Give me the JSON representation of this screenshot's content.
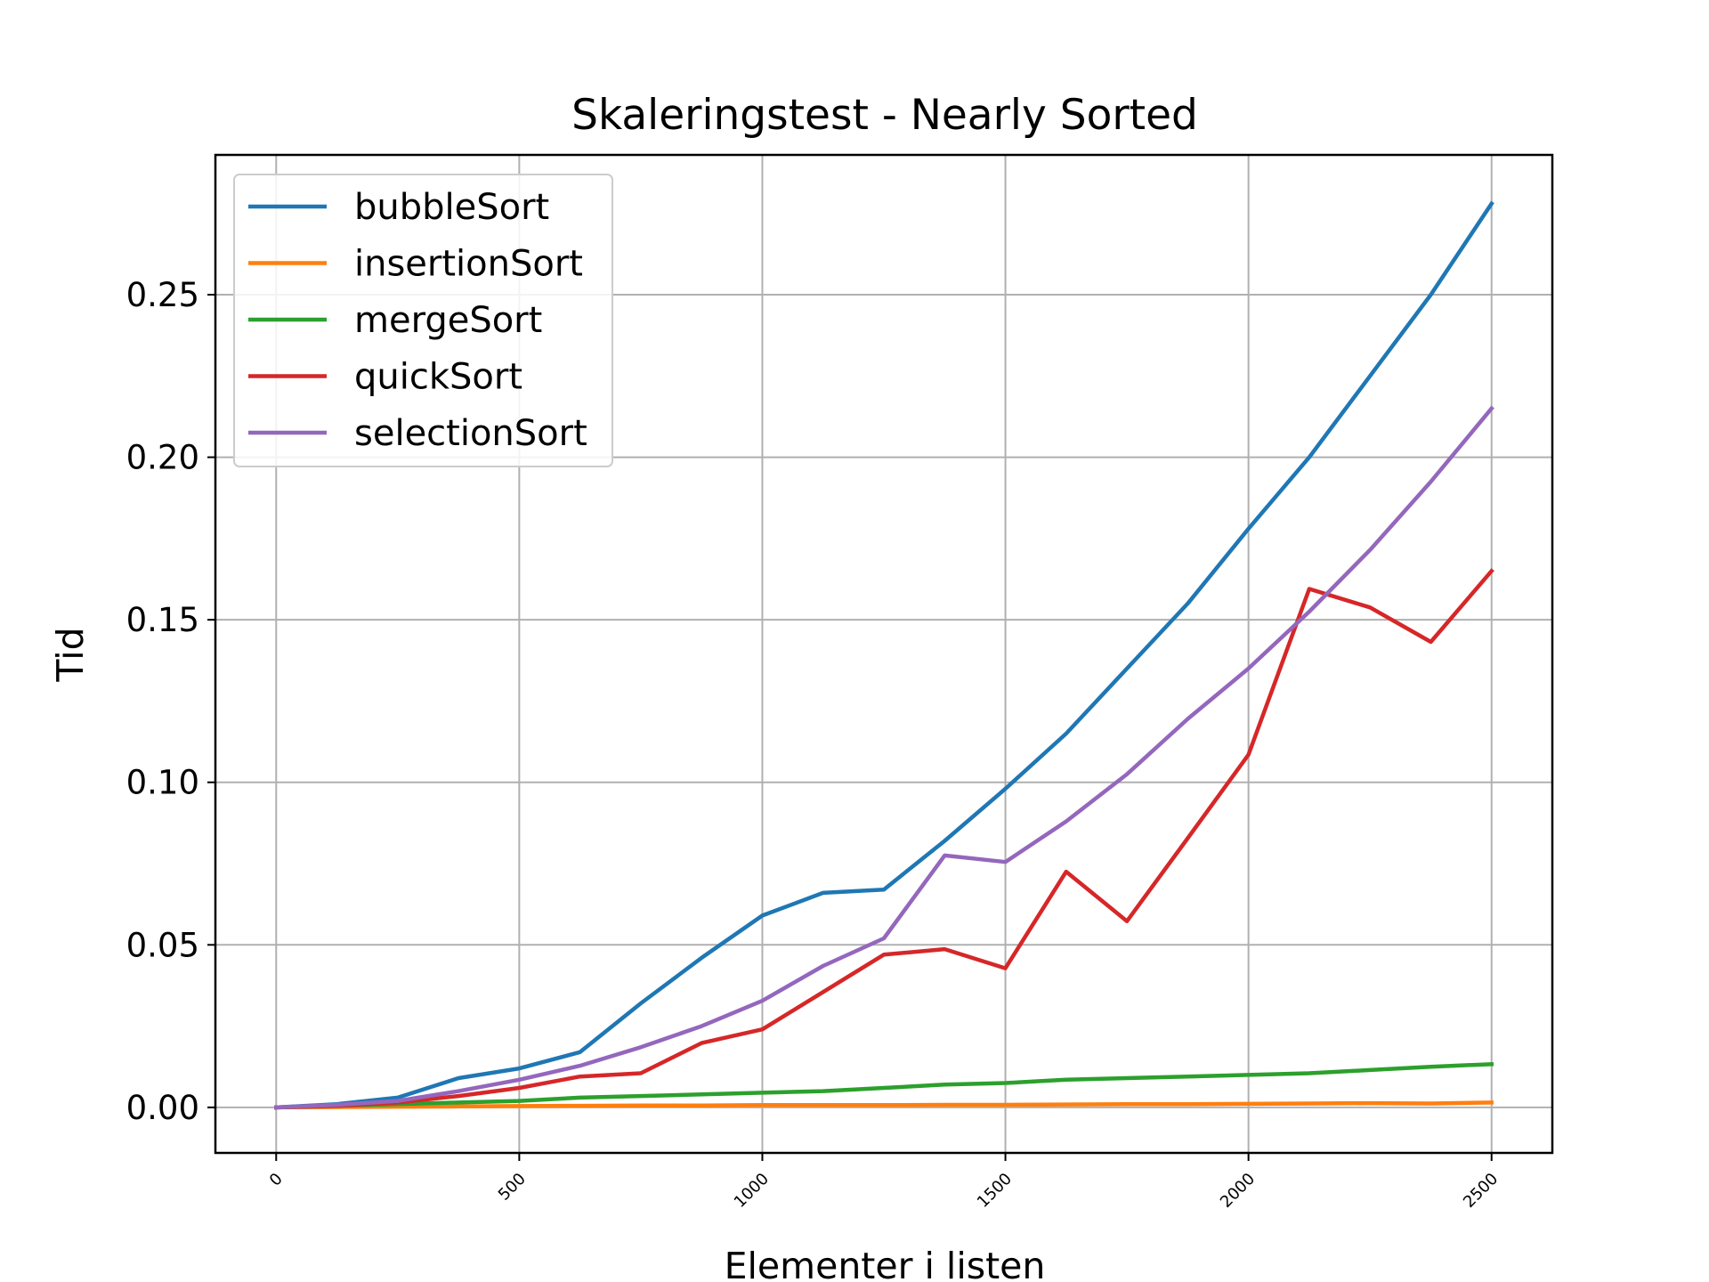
{
  "chart_data": {
    "type": "line",
    "title": "Skaleringstest - Nearly Sorted",
    "xlabel": "Elementer i listen",
    "ylabel": "Tid",
    "xlim": [
      -125,
      2625
    ],
    "ylim": [
      -0.014,
      0.293
    ],
    "xticks": [
      0,
      500,
      1000,
      1500,
      2000,
      2500
    ],
    "yticks": [
      0.0,
      0.05,
      0.1,
      0.15,
      0.2,
      0.25
    ],
    "ytick_labels": [
      "0.00",
      "0.05",
      "0.10",
      "0.15",
      "0.20",
      "0.25"
    ],
    "xtick_labels": [
      "0",
      "500",
      "1000",
      "1500",
      "2000",
      "2500"
    ],
    "grid": true,
    "legend_position": "top-left",
    "x": [
      0,
      125,
      250,
      375,
      500,
      625,
      750,
      875,
      1000,
      1125,
      1250,
      1375,
      1500,
      1625,
      1750,
      1875,
      2000,
      2125,
      2250,
      2375,
      2500
    ],
    "series": [
      {
        "name": "bubbleSort",
        "color": "#1f77b4",
        "values": [
          0.0,
          0.001,
          0.003,
          0.009,
          0.012,
          0.017,
          0.032,
          0.046,
          0.059,
          0.066,
          0.067,
          0.082,
          0.098,
          0.115,
          0.135,
          0.155,
          0.178,
          0.2,
          0.225,
          0.25,
          0.278
        ]
      },
      {
        "name": "insertionSort",
        "color": "#ff7f0e",
        "values": [
          0.0,
          0.0001,
          0.0002,
          0.0003,
          0.0004,
          0.0005,
          0.0006,
          0.0006,
          0.0007,
          0.0007,
          0.0007,
          0.0008,
          0.0008,
          0.0009,
          0.001,
          0.001,
          0.0011,
          0.0012,
          0.0013,
          0.0012,
          0.0015
        ]
      },
      {
        "name": "mergeSort",
        "color": "#2ca02c",
        "values": [
          0.0,
          0.0005,
          0.001,
          0.0015,
          0.002,
          0.003,
          0.0035,
          0.004,
          0.0045,
          0.005,
          0.006,
          0.007,
          0.0075,
          0.0085,
          0.009,
          0.0095,
          0.01,
          0.0105,
          0.0115,
          0.0125,
          0.0133
        ]
      },
      {
        "name": "quickSort",
        "color": "#d62728",
        "values": [
          0.0,
          0.0005,
          0.0015,
          0.0035,
          0.006,
          0.0095,
          0.0105,
          0.0198,
          0.024,
          0.0355,
          0.047,
          0.0487,
          0.0428,
          0.0725,
          0.0573,
          0.0828,
          0.1085,
          0.1595,
          0.1538,
          0.1432,
          0.165
        ]
      },
      {
        "name": "selectionSort",
        "color": "#9467bd",
        "values": [
          0.0,
          0.0008,
          0.002,
          0.005,
          0.0085,
          0.0128,
          0.0185,
          0.025,
          0.0328,
          0.0435,
          0.052,
          0.0775,
          0.0755,
          0.088,
          0.1025,
          0.1195,
          0.135,
          0.1525,
          0.1715,
          0.1925,
          0.215
        ]
      }
    ]
  }
}
